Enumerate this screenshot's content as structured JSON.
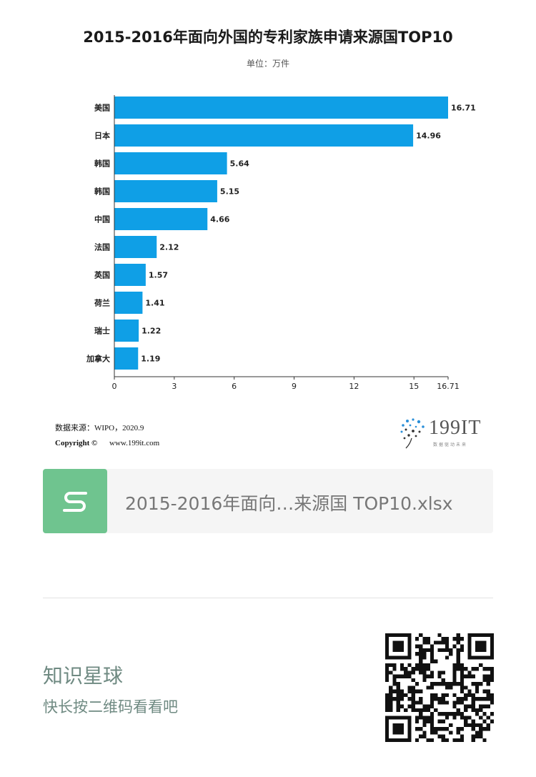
{
  "chart_data": {
    "type": "bar",
    "orientation": "horizontal",
    "title": "2015-2016年面向外国的专利家族申请来源国TOP10",
    "subtitle": "单位：万件",
    "categories": [
      "美国",
      "日本",
      "韩国",
      "韩国",
      "中国",
      "法国",
      "英国",
      "荷兰",
      "瑞士",
      "加拿大"
    ],
    "values": [
      16.71,
      14.96,
      5.64,
      5.15,
      4.66,
      2.12,
      1.57,
      1.41,
      1.22,
      1.19
    ],
    "value_labels": [
      "16.71",
      "14.96",
      "5.64",
      "5.15",
      "4.66",
      "2.12",
      "1.57",
      "1.41",
      "1.22",
      "1.19"
    ],
    "xticks": [
      "0",
      "3",
      "6",
      "9",
      "12",
      "15",
      "16.71"
    ],
    "xtick_values": [
      0,
      3,
      6,
      9,
      12,
      15,
      16.71
    ],
    "xlim": [
      0,
      16.71
    ],
    "bar_color": "#0f9fe6",
    "grid": false,
    "legend": "none"
  },
  "source": {
    "line": "数据来源：WIPO，2020.9",
    "copyright_label": "Copyright ©",
    "website": "www.199it.com"
  },
  "logo": {
    "text": "199IT",
    "tagline": "数据驱动未来"
  },
  "file_card": {
    "icon": "s-file-icon",
    "icon_color": "#6fc48f",
    "name": "2015-2016年面向…来源国 TOP10.xlsx"
  },
  "footer": {
    "title": "知识星球",
    "subtitle": "快长按二维码看看吧",
    "qr_icon": "qr-code-icon"
  }
}
